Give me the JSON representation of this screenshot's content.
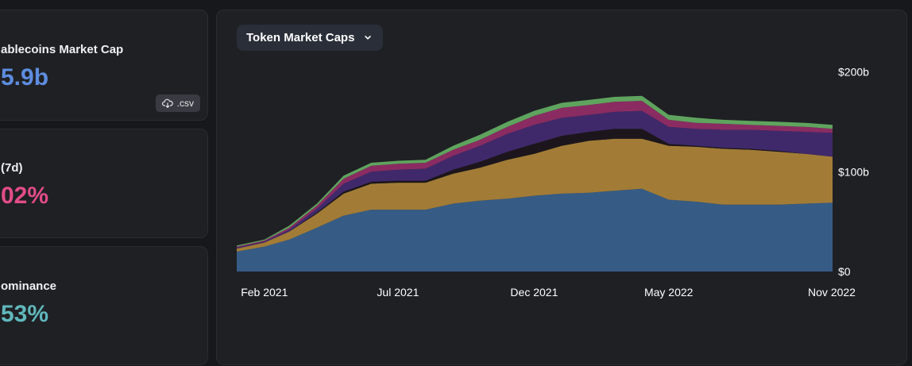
{
  "stats": [
    {
      "label": "ablecoins Market Cap",
      "value": "5.9b",
      "color": "#5d8de0"
    },
    {
      "label": "(7d)",
      "value": "02%",
      "color": "#e24c88"
    },
    {
      "label": "ominance",
      "value": "53%",
      "color": "#5fb8bc"
    }
  ],
  "csv_label": ".csv",
  "dropdown_label": "Token Market Caps",
  "chart_data": {
    "type": "area",
    "stacked": true,
    "x": [
      "2021-01-01",
      "2021-02-01",
      "2021-03-01",
      "2021-04-01",
      "2021-05-01",
      "2021-06-01",
      "2021-07-01",
      "2021-08-01",
      "2021-09-01",
      "2021-10-01",
      "2021-11-01",
      "2021-12-01",
      "2022-01-01",
      "2022-02-01",
      "2022-03-01",
      "2022-04-01",
      "2022-05-01",
      "2022-06-01",
      "2022-07-01",
      "2022-08-01",
      "2022-09-01",
      "2022-10-01",
      "2022-11-01"
    ],
    "series": [
      {
        "color": "#365c86",
        "values": [
          20,
          25,
          32,
          44,
          56,
          62,
          62,
          62,
          68,
          71,
          73,
          76,
          78,
          79,
          81,
          83,
          72,
          70,
          67,
          67,
          67,
          68,
          69
        ]
      },
      {
        "color": "#a27c36",
        "values": [
          3,
          4,
          8,
          14,
          22,
          26,
          27,
          27,
          30,
          33,
          39,
          42,
          48,
          52,
          52,
          50,
          54,
          55,
          56,
          55,
          53,
          50,
          46
        ]
      },
      {
        "color": "#1c161c",
        "values": [
          0,
          0,
          0,
          1,
          2,
          2,
          2,
          2,
          4,
          6,
          8,
          10,
          10,
          9,
          10,
          10,
          2,
          1,
          1,
          1,
          1,
          0,
          0
        ]
      },
      {
        "color": "#40296b",
        "values": [
          1,
          1,
          2,
          4,
          8,
          10,
          11,
          12,
          14,
          16,
          18,
          19,
          18,
          17,
          17,
          18,
          17,
          17,
          18,
          19,
          20,
          22,
          24
        ]
      },
      {
        "color": "#8a2c62",
        "values": [
          1,
          1,
          2,
          3,
          5,
          6,
          6,
          6,
          6,
          6,
          7,
          9,
          10,
          10,
          10,
          10,
          7,
          6,
          6,
          5,
          5,
          5,
          4
        ]
      },
      {
        "color": "#5fa45e",
        "values": [
          1,
          1,
          2,
          2,
          3,
          3,
          3,
          3,
          4,
          5,
          5,
          5,
          5,
          5,
          5,
          5,
          5,
          5,
          4,
          4,
          4,
          4,
          4
        ]
      }
    ],
    "x_ticks": [
      "Feb 2021",
      "Jul 2021",
      "Dec 2021",
      "May 2022",
      "Nov 2022"
    ],
    "y_ticks": [
      "$0",
      "$100b",
      "$200b"
    ],
    "ylim": [
      0,
      210
    ],
    "y_axis_position": "right",
    "grid": false
  }
}
